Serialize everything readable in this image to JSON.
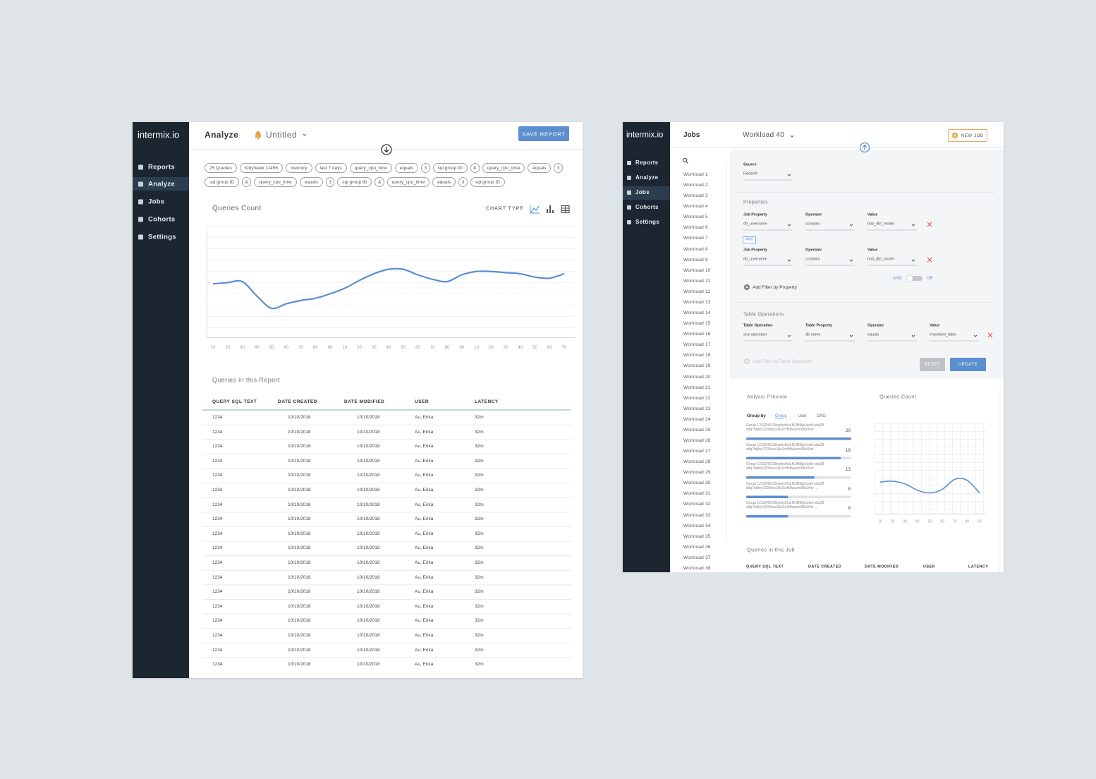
{
  "screens": {
    "left": {
      "brand": "intermix.io",
      "nav": [
        "Reports",
        "Analyze",
        "Jobs",
        "Cohorts",
        "Settings"
      ],
      "page_title": "Analyze",
      "report_name": "Untitled",
      "save_button": "SAVE REPORT",
      "filters": [
        "25 Queries",
        "Kittyhawk 11456",
        "memory",
        "last 7 days",
        "query_cpu_time",
        "equals",
        "3",
        "sql group ID",
        "&",
        "query_cpu_time",
        "equals",
        "3",
        "sql group ID",
        "&",
        "query_cpu_time",
        "equals",
        "3",
        "sql group ID",
        "&",
        "query_cpu_time",
        "equals",
        "3",
        "sql group ID"
      ],
      "chart_type_label": "CHART TYPE",
      "table": {
        "title": "Queries in this Report",
        "columns": [
          "QUERY SQL TEXT",
          "DATE CREATED",
          "DATE MODIFIED",
          "USER",
          "LATENCY"
        ],
        "rows": [
          [
            "1234",
            "10/10/2018",
            "10/10/2018",
            "Au, Erika",
            "32m"
          ],
          [
            "1234",
            "10/10/2018",
            "10/10/2018",
            "Au, Erika",
            "32m"
          ],
          [
            "1234",
            "10/10/2018",
            "10/10/2018",
            "Au, Erika",
            "32m"
          ],
          [
            "1234",
            "10/10/2018",
            "10/10/2018",
            "Au, Erika",
            "32m"
          ],
          [
            "1234",
            "10/10/2018",
            "10/10/2018",
            "Au, Erika",
            "32m"
          ],
          [
            "1234",
            "10/10/2018",
            "10/10/2018",
            "Au, Erika",
            "32m"
          ],
          [
            "1234",
            "10/10/2018",
            "10/10/2018",
            "Au, Erika",
            "32m"
          ],
          [
            "1234",
            "10/10/2018",
            "10/10/2018",
            "Au, Erika",
            "32m"
          ],
          [
            "1234",
            "10/10/2018",
            "10/10/2018",
            "Au, Erika",
            "32m"
          ],
          [
            "1234",
            "10/10/2018",
            "10/10/2018",
            "Au, Erika",
            "32m"
          ],
          [
            "1234",
            "10/10/2018",
            "10/10/2018",
            "Au, Erika",
            "32m"
          ],
          [
            "1234",
            "10/10/2018",
            "10/10/2018",
            "Au, Erika",
            "32m"
          ],
          [
            "1234",
            "10/10/2018",
            "10/10/2018",
            "Au, Erika",
            "32m"
          ],
          [
            "1234",
            "10/10/2018",
            "10/10/2018",
            "Au, Erika",
            "32m"
          ],
          [
            "1234",
            "10/10/2018",
            "10/10/2018",
            "Au, Erika",
            "32m"
          ],
          [
            "1234",
            "10/10/2018",
            "10/10/2018",
            "Au, Erika",
            "32m"
          ],
          [
            "1234",
            "10/10/2018",
            "10/10/2018",
            "Au, Erika",
            "32m"
          ],
          [
            "1234",
            "10/10/2018",
            "10/10/2018",
            "Au, Erika",
            "32m"
          ]
        ]
      }
    },
    "right": {
      "brand": "intermix.io",
      "nav": [
        "Reports",
        "Analyze",
        "Jobs",
        "Cohorts",
        "Settings"
      ],
      "page_title": "Jobs",
      "workload": "Workload 40",
      "new_button": "NEW JOB",
      "workloads": [
        "Workload 1",
        "Workload 2",
        "Workload 3",
        "Workload 4",
        "Workload 5",
        "Workload 6",
        "Workload 7",
        "Workload 8",
        "Workload 9",
        "Workload 10",
        "Workload 11",
        "Workload 12",
        "Workload 13",
        "Workload 14",
        "Workload 15",
        "Workload 16",
        "Workload 17",
        "Workload 18",
        "Workload 19",
        "Workload 20",
        "Workload 21",
        "Workload 22",
        "Workload 23",
        "Workload 24",
        "Workload 25",
        "Workload 26",
        "Workload 27",
        "Workload 28",
        "Workload 29",
        "Workload 30",
        "Workload 31",
        "Workload 32",
        "Workload 33",
        "Workload 34",
        "Workload 35",
        "Workload 36",
        "Workload 37",
        "Workload 38"
      ],
      "source": {
        "label": "Source",
        "value": "Redshift"
      },
      "properties": {
        "title": "Properties",
        "labels": [
          "Job Property",
          "Operator",
          "Value"
        ],
        "filters": [
          [
            "db_username",
            "contains",
            "bob_dbt_model"
          ],
          [
            "db_username",
            "contains",
            "bob_dbt_model"
          ]
        ],
        "joiner": "AND",
        "toggle": [
          "AND",
          "OR"
        ],
        "add": "Add Filter by Property"
      },
      "table_operations": {
        "title": "Table Operations",
        "labels": [
          "Table Operation",
          "Table Property",
          "Operator",
          "Value"
        ],
        "values": [
          "any operation",
          "db name",
          "equals",
          "important_table"
        ],
        "add": "Add Filter by Table Operation"
      },
      "reset": "RESET",
      "update": "UPDATE",
      "jobs_table": {
        "title": "Queries in this Job",
        "columns": [
          "QUERY SQL TEXT",
          "DATE CREATED",
          "DATE MODIFIED",
          "USER",
          "LATENCY"
        ]
      }
    }
  },
  "chart_data": [
    {
      "type": "line",
      "title": "Queries Count",
      "categories": [
        "10",
        "20",
        "30",
        "40",
        "50",
        "60",
        "70",
        "80",
        "90",
        "10",
        "20",
        "30",
        "40",
        "50",
        "60",
        "70",
        "80",
        "90",
        "10",
        "20",
        "30",
        "40",
        "50",
        "60",
        "70"
      ],
      "values": [
        48,
        49,
        50,
        37,
        26,
        30,
        33,
        35,
        39,
        44,
        51,
        57,
        61,
        61,
        56,
        52,
        50,
        56,
        59,
        59,
        58,
        57,
        54,
        53,
        57
      ],
      "color": "#5b8fd0",
      "ylim": [
        0,
        100
      ]
    },
    {
      "type": "bar",
      "title": "Anlysis Preview",
      "group_by": "Group by",
      "group_options": [
        "Group",
        "User",
        "DAG"
      ],
      "categories": [
        "Group 1233249128njebcfrluLfKJBfkjbJuebf,xbq28 e8q7rdjhry1209euo2jix2crfb8wachr89u34cr ...",
        "Group 1233249128njebcfrluLfKJBfkjbJuebf,xbq28 e8q7rdjhry1209euo2jix2crfb8wachr89u34cr ...",
        "Group 1233249128njebcfrluLfKJBfkjbJuebf,xbq28 e8q7rdjhry1209euo2jix2crfb8wachr89u34cr ...",
        "Group 1233249128njebcfrluLfKJBfkjbJuebf,xbq28 e8q7rdjhry1209euo2jix2crfb8wachr89u34cr ...",
        "Group 1233249128njebcfrluLfKJBfkjbJuebf,xbq28 e8q7rdjhry1209euo2jix2crfb8wachr89u34cr ..."
      ],
      "values": [
        20,
        18,
        13,
        8,
        8
      ],
      "xlim": [
        0,
        20
      ],
      "color": "#5b8fd0"
    },
    {
      "type": "line",
      "title": "Queries Count",
      "categories": [
        "10",
        "20",
        "30",
        "40",
        "50",
        "60",
        "70",
        "80",
        "90"
      ],
      "values": [
        35,
        36,
        33,
        26,
        23,
        27,
        38,
        37,
        23
      ],
      "color": "#5b8fd0",
      "ylim": [
        0,
        100
      ]
    }
  ]
}
